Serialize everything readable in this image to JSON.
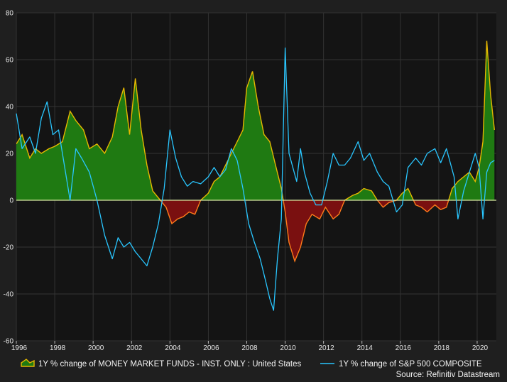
{
  "chart_data": {
    "type": "area",
    "title": "",
    "xlabel": "",
    "ylabel": "",
    "xlim": [
      1996,
      2021
    ],
    "ylim": [
      -60,
      80
    ],
    "grid": true,
    "legend_placement": "bottom",
    "x_ticks": [
      "1996",
      "1998",
      "2000",
      "2002",
      "2004",
      "2006",
      "2008",
      "2010",
      "2012",
      "2014",
      "2016",
      "2018",
      "2020"
    ],
    "y_ticks": [
      "80",
      "60",
      "40",
      "20",
      "0",
      "-20",
      "-40",
      "-60"
    ],
    "series": [
      {
        "name": "1Y % change of MONEY MARKET FUNDS - INST. ONLY : United States",
        "style": "filled-area",
        "color_line": "#e6b800",
        "color_positive": "#1f7a12",
        "color_negative": "#7a1010",
        "color_negative_line": "#ff7a1a",
        "x": [
          1996.0,
          1996.3,
          1996.7,
          1997.0,
          1997.3,
          1997.7,
          1998.0,
          1998.4,
          1998.8,
          1999.1,
          1999.5,
          1999.8,
          2000.2,
          2000.6,
          2001.0,
          2001.3,
          2001.6,
          2001.9,
          2002.2,
          2002.5,
          2002.8,
          2003.1,
          2003.5,
          2003.8,
          2004.1,
          2004.4,
          2004.7,
          2005.0,
          2005.3,
          2005.6,
          2006.0,
          2006.3,
          2006.6,
          2006.9,
          2007.2,
          2007.5,
          2007.8,
          2008.0,
          2008.3,
          2008.6,
          2008.9,
          2009.2,
          2009.5,
          2009.8,
          2010.0,
          2010.2,
          2010.5,
          2010.8,
          2011.1,
          2011.4,
          2011.8,
          2012.1,
          2012.5,
          2012.8,
          2013.1,
          2013.5,
          2013.8,
          2014.1,
          2014.5,
          2014.8,
          2015.1,
          2015.4,
          2015.8,
          2016.1,
          2016.4,
          2016.8,
          2017.1,
          2017.4,
          2017.8,
          2018.1,
          2018.4,
          2018.7,
          2019.0,
          2019.3,
          2019.6,
          2019.9,
          2020.1,
          2020.3,
          2020.5,
          2020.7,
          2020.9
        ],
        "values": [
          24,
          28,
          18,
          22,
          20,
          22,
          23,
          25,
          38,
          34,
          30,
          22,
          24,
          20,
          27,
          40,
          48,
          28,
          52,
          30,
          15,
          4,
          0,
          -3,
          -10,
          -8,
          -7,
          -5,
          -6,
          0,
          3,
          8,
          10,
          15,
          20,
          25,
          30,
          48,
          55,
          40,
          28,
          25,
          15,
          5,
          -5,
          -18,
          -26,
          -20,
          -10,
          -6,
          -8,
          -3,
          -8,
          -6,
          0,
          2,
          3,
          5,
          4,
          0,
          -3,
          -1,
          0,
          3,
          5,
          -2,
          -3,
          -5,
          -2,
          -4,
          -3,
          5,
          8,
          10,
          12,
          8,
          14,
          25,
          68,
          45,
          30
        ]
      },
      {
        "name": "1Y % change of S&P 500 COMPOSITE",
        "style": "line",
        "color": "#29c6ff",
        "x": [
          1996.0,
          1996.3,
          1996.7,
          1997.0,
          1997.3,
          1997.6,
          1997.9,
          1998.2,
          1998.5,
          1998.8,
          1999.1,
          1999.4,
          1999.8,
          2000.2,
          2000.6,
          2001.0,
          2001.3,
          2001.6,
          2001.9,
          2002.2,
          2002.5,
          2002.8,
          2003.1,
          2003.4,
          2003.7,
          2004.0,
          2004.3,
          2004.6,
          2004.9,
          2005.2,
          2005.6,
          2006.0,
          2006.3,
          2006.6,
          2006.9,
          2007.2,
          2007.5,
          2007.8,
          2008.1,
          2008.4,
          2008.7,
          2009.0,
          2009.2,
          2009.4,
          2009.6,
          2009.8,
          2010.0,
          2010.2,
          2010.4,
          2010.6,
          2010.8,
          2011.0,
          2011.3,
          2011.6,
          2011.9,
          2012.2,
          2012.5,
          2012.8,
          2013.1,
          2013.4,
          2013.8,
          2014.1,
          2014.4,
          2014.8,
          2015.1,
          2015.4,
          2015.8,
          2016.1,
          2016.4,
          2016.8,
          2017.1,
          2017.4,
          2017.8,
          2018.1,
          2018.4,
          2018.8,
          2019.0,
          2019.3,
          2019.6,
          2019.9,
          2020.1,
          2020.3,
          2020.5,
          2020.7,
          2020.9
        ],
        "values": [
          37,
          22,
          27,
          20,
          35,
          42,
          28,
          30,
          15,
          0,
          22,
          18,
          12,
          0,
          -15,
          -25,
          -16,
          -20,
          -18,
          -22,
          -25,
          -28,
          -20,
          -10,
          5,
          30,
          18,
          10,
          6,
          8,
          7,
          10,
          14,
          10,
          13,
          22,
          17,
          5,
          -10,
          -18,
          -25,
          -35,
          -42,
          -47,
          -25,
          -8,
          65,
          20,
          14,
          8,
          22,
          12,
          3,
          -2,
          -2,
          8,
          20,
          15,
          15,
          18,
          25,
          17,
          20,
          12,
          8,
          6,
          -5,
          -2,
          14,
          18,
          15,
          20,
          22,
          16,
          22,
          10,
          -8,
          4,
          12,
          20,
          14,
          -8,
          12,
          16,
          17
        ]
      }
    ]
  },
  "legend": {
    "area_label": "1Y % change of MONEY MARKET FUNDS - INST. ONLY : United States",
    "line_label": "1Y % change of S&P 500 COMPOSITE"
  },
  "source": "Source: Refinitiv Datastream"
}
